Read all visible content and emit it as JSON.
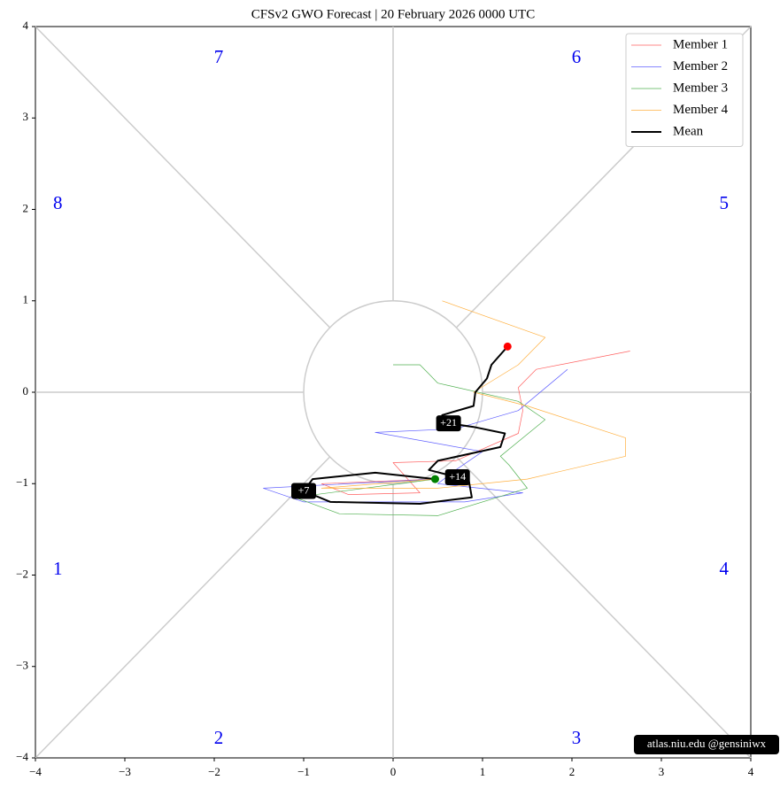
{
  "chart_data": {
    "type": "phase",
    "title": "CFSv2 GWO Forecast   |   20  February  2026 0000 UTC",
    "credit": "atlas.niu.edu  @gensiniwx",
    "xlim": [
      -4,
      4
    ],
    "ylim": [
      -4,
      4
    ],
    "xticks": [
      {
        "value": -4,
        "label": "−4"
      },
      {
        "value": -3,
        "label": "−3"
      },
      {
        "value": -2,
        "label": "−2"
      },
      {
        "value": -1,
        "label": "−1"
      },
      0,
      1,
      2,
      3,
      4
    ],
    "yticks": [
      {
        "value": -4,
        "label": "−4"
      },
      {
        "value": -3,
        "label": "−3"
      },
      {
        "value": -2,
        "label": "−2"
      },
      {
        "value": -1,
        "label": "−1"
      },
      0,
      1,
      2,
      3,
      4
    ],
    "phase_labels": [
      "1",
      "2",
      "3",
      "4",
      "5",
      "6",
      "7",
      "8"
    ],
    "legend": "upper right",
    "series": [
      {
        "name": "Member 1",
        "color": "#ff6060",
        "x": [
          0.47,
          -0.8,
          -0.5,
          0.3,
          0.0,
          0.7,
          1.4,
          1.45,
          1.4,
          1.6,
          2.65
        ],
        "y": [
          -0.95,
          -1.0,
          -1.12,
          -1.1,
          -0.77,
          -0.75,
          -0.45,
          -0.2,
          0.05,
          0.25,
          0.45
        ]
      },
      {
        "name": "Member 2",
        "color": "#6060ff",
        "x": [
          0.47,
          -1.45,
          -1.0,
          0.8,
          1.45,
          0.5,
          0.7,
          1.0,
          -0.2,
          0.7,
          1.4,
          1.95
        ],
        "y": [
          -0.95,
          -1.05,
          -1.2,
          -1.2,
          -1.1,
          -1.0,
          -0.85,
          -0.65,
          -0.44,
          -0.4,
          -0.2,
          0.25
        ]
      },
      {
        "name": "Member 3",
        "color": "#50b050",
        "x": [
          0.47,
          -1.1,
          -0.6,
          0.5,
          1.5,
          1.3,
          1.2,
          1.7,
          1.4,
          0.5,
          0.4,
          0.3,
          0.0
        ],
        "y": [
          -0.95,
          -1.15,
          -1.33,
          -1.35,
          -1.05,
          -0.8,
          -0.7,
          -0.3,
          -0.1,
          0.1,
          0.2,
          0.3,
          0.3
        ]
      },
      {
        "name": "Member 4",
        "color": "#ffb040",
        "x": [
          0.47,
          -0.8,
          0.5,
          1.5,
          2.6,
          2.6,
          1.5,
          0.9,
          1.4,
          1.7,
          0.55
        ],
        "y": [
          -0.95,
          -1.05,
          -1.05,
          -0.95,
          -0.7,
          -0.5,
          -0.15,
          0.0,
          0.3,
          0.6,
          1.0
        ]
      },
      {
        "name": "Mean",
        "color": "#000000",
        "x": [
          0.47,
          -0.2,
          -0.9,
          -1.0,
          -0.7,
          0.3,
          0.88,
          0.85,
          0.72,
          0.4,
          0.5,
          1.2,
          1.25,
          0.9,
          0.62,
          0.55,
          0.9,
          0.92,
          1.05,
          1.1,
          1.28
        ],
        "y": [
          -0.95,
          -0.88,
          -0.95,
          -1.08,
          -1.2,
          -1.22,
          -1.15,
          -0.98,
          -0.93,
          -0.85,
          -0.75,
          -0.6,
          -0.45,
          -0.38,
          -0.34,
          -0.25,
          -0.15,
          0.0,
          0.15,
          0.3,
          0.5
        ],
        "start_color": "#008000",
        "end_color": "#ff0000",
        "annotations": [
          {
            "text": "+7",
            "point": 3
          },
          {
            "text": "+14",
            "point": 8
          },
          {
            "text": "+21",
            "point": 14
          }
        ]
      }
    ]
  }
}
